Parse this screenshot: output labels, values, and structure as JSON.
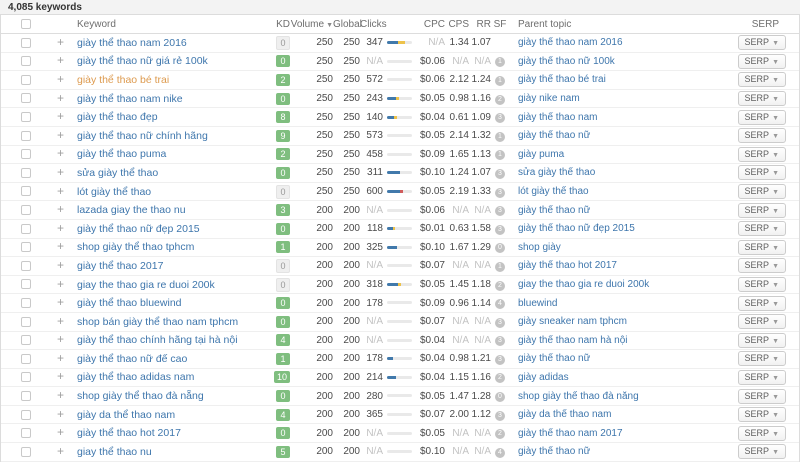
{
  "page": {
    "keywords_count": "4,085 keywords"
  },
  "table": {
    "columns": {
      "keyword": "Keyword",
      "kd": "KD",
      "volume": "Volume",
      "global": "Global",
      "clicks": "Clicks",
      "cpc": "CPC",
      "cps": "CPS",
      "rr": "RR",
      "sf": "SF",
      "parent_topic": "Parent topic",
      "serp": "SERP"
    },
    "serp_button_label": "SERP",
    "colors": {
      "link_blue": "#3e76ac",
      "visited_orange": "#dd9a4e",
      "kd_green": "#7fbe7f",
      "bar_blue": "#4179ab",
      "bar_yellow": "#edc24a",
      "bar_red": "#d05c5c"
    },
    "rows": [
      {
        "keyword": "giày thể thao nam 2016",
        "visited": false,
        "kd": "0",
        "kd_color": "gray",
        "volume": "250",
        "global": "250",
        "clicks": "347",
        "bar": [
          {
            "c": "blue",
            "w": 11
          },
          {
            "c": "yellow",
            "w": 7
          }
        ],
        "cpc": "N/A",
        "cps": "1.34",
        "rr": "1.07",
        "sf": "",
        "parent": "giày thể thao nam 2016"
      },
      {
        "keyword": "giày thể thao nữ giá rẻ 100k",
        "visited": false,
        "kd": "0",
        "kd_color": "green",
        "volume": "250",
        "global": "250",
        "clicks": "N/A",
        "bar": [],
        "cpc": "$0.06",
        "cps": "N/A",
        "rr": "N/A",
        "sf": "1",
        "parent": "giày thể thao nữ 100k"
      },
      {
        "keyword": "giày thể thao bé trai",
        "visited": true,
        "kd": "2",
        "kd_color": "green",
        "volume": "250",
        "global": "250",
        "clicks": "572",
        "bar": [],
        "cpc": "$0.06",
        "cps": "2.12",
        "rr": "1.24",
        "sf": "1",
        "parent": "giày thể thao bé trai"
      },
      {
        "keyword": "giày thể thao nam nike",
        "visited": false,
        "kd": "0",
        "kd_color": "green",
        "volume": "250",
        "global": "250",
        "clicks": "243",
        "bar": [
          {
            "c": "blue",
            "w": 9
          },
          {
            "c": "yellow",
            "w": 3
          }
        ],
        "cpc": "$0.05",
        "cps": "0.98",
        "rr": "1.16",
        "sf": "2",
        "parent": "giày nike nam"
      },
      {
        "keyword": "giày thể thao đẹp",
        "visited": false,
        "kd": "8",
        "kd_color": "green",
        "volume": "250",
        "global": "250",
        "clicks": "140",
        "bar": [
          {
            "c": "blue",
            "w": 7
          },
          {
            "c": "yellow",
            "w": 3
          }
        ],
        "cpc": "$0.04",
        "cps": "0.61",
        "rr": "1.09",
        "sf": "3",
        "parent": "giày thể thao nam"
      },
      {
        "keyword": "giày thể thao nữ chính hãng",
        "visited": false,
        "kd": "9",
        "kd_color": "green",
        "volume": "250",
        "global": "250",
        "clicks": "573",
        "bar": [],
        "cpc": "$0.05",
        "cps": "2.14",
        "rr": "1.32",
        "sf": "1",
        "parent": "giày thể thao nữ"
      },
      {
        "keyword": "giày thể thao puma",
        "visited": false,
        "kd": "2",
        "kd_color": "green",
        "volume": "250",
        "global": "250",
        "clicks": "458",
        "bar": [],
        "cpc": "$0.09",
        "cps": "1.65",
        "rr": "1.13",
        "sf": "1",
        "parent": "giày puma"
      },
      {
        "keyword": "sửa giày thể thao",
        "visited": false,
        "kd": "0",
        "kd_color": "green",
        "volume": "250",
        "global": "250",
        "clicks": "311",
        "bar": [
          {
            "c": "blue",
            "w": 13
          }
        ],
        "cpc": "$0.10",
        "cps": "1.24",
        "rr": "1.07",
        "sf": "3",
        "parent": "sửa giày thể thao"
      },
      {
        "keyword": "lót giày thể thao",
        "visited": false,
        "kd": "0",
        "kd_color": "gray",
        "volume": "250",
        "global": "250",
        "clicks": "600",
        "bar": [
          {
            "c": "blue",
            "w": 13
          },
          {
            "c": "red",
            "w": 3
          }
        ],
        "cpc": "$0.05",
        "cps": "2.19",
        "rr": "1.33",
        "sf": "3",
        "parent": "lót giày thể thao"
      },
      {
        "keyword": "lazada giay the thao nu",
        "visited": false,
        "kd": "3",
        "kd_color": "green",
        "volume": "200",
        "global": "200",
        "clicks": "N/A",
        "bar": [],
        "cpc": "$0.06",
        "cps": "N/A",
        "rr": "N/A",
        "sf": "3",
        "parent": "giày thể thao nữ"
      },
      {
        "keyword": "giày thể thao nữ đẹp 2015",
        "visited": false,
        "kd": "0",
        "kd_color": "green",
        "volume": "200",
        "global": "200",
        "clicks": "118",
        "bar": [
          {
            "c": "blue",
            "w": 6
          },
          {
            "c": "yellow",
            "w": 2
          }
        ],
        "cpc": "$0.01",
        "cps": "0.63",
        "rr": "1.58",
        "sf": "3",
        "parent": "giày thể thao nữ đẹp 2015"
      },
      {
        "keyword": "shop giày thể thao tphcm",
        "visited": false,
        "kd": "1",
        "kd_color": "green",
        "volume": "200",
        "global": "200",
        "clicks": "325",
        "bar": [
          {
            "c": "blue",
            "w": 10
          }
        ],
        "cpc": "$0.10",
        "cps": "1.67",
        "rr": "1.29",
        "sf": "0",
        "parent": "shop giày"
      },
      {
        "keyword": "giày thể thao 2017",
        "visited": false,
        "kd": "0",
        "kd_color": "gray",
        "volume": "200",
        "global": "200",
        "clicks": "N/A",
        "bar": [],
        "cpc": "$0.07",
        "cps": "N/A",
        "rr": "N/A",
        "sf": "1",
        "parent": "giày thể thao hot 2017"
      },
      {
        "keyword": "giay the thao gia re duoi 200k",
        "visited": false,
        "kd": "0",
        "kd_color": "gray",
        "volume": "200",
        "global": "200",
        "clicks": "318",
        "bar": [
          {
            "c": "blue",
            "w": 11
          },
          {
            "c": "yellow",
            "w": 3
          }
        ],
        "cpc": "$0.05",
        "cps": "1.45",
        "rr": "1.18",
        "sf": "2",
        "parent": "giay the thao gia re duoi 200k"
      },
      {
        "keyword": "giày thể thao bluewind",
        "visited": false,
        "kd": "0",
        "kd_color": "green",
        "volume": "200",
        "global": "200",
        "clicks": "178",
        "bar": [],
        "cpc": "$0.09",
        "cps": "0.96",
        "rr": "1.14",
        "sf": "4",
        "parent": "bluewind"
      },
      {
        "keyword": "shop bán giày thể thao nam tphcm",
        "visited": false,
        "kd": "0",
        "kd_color": "green",
        "volume": "200",
        "global": "200",
        "clicks": "N/A",
        "bar": [],
        "cpc": "$0.07",
        "cps": "N/A",
        "rr": "N/A",
        "sf": "3",
        "parent": "giày sneaker nam tphcm"
      },
      {
        "keyword": "giày thể thao chính hãng tại hà nội",
        "visited": false,
        "kd": "4",
        "kd_color": "green",
        "volume": "200",
        "global": "200",
        "clicks": "N/A",
        "bar": [],
        "cpc": "$0.04",
        "cps": "N/A",
        "rr": "N/A",
        "sf": "3",
        "parent": "giày thể thao nam hà nội"
      },
      {
        "keyword": "giày thể thao nữ đế cao",
        "visited": false,
        "kd": "1",
        "kd_color": "green",
        "volume": "200",
        "global": "200",
        "clicks": "178",
        "bar": [
          {
            "c": "blue",
            "w": 6
          }
        ],
        "cpc": "$0.04",
        "cps": "0.98",
        "rr": "1.21",
        "sf": "3",
        "parent": "giày thể thao nữ"
      },
      {
        "keyword": "giày thể thao adidas nam",
        "visited": false,
        "kd": "10",
        "kd_color": "green",
        "volume": "200",
        "global": "200",
        "clicks": "214",
        "bar": [
          {
            "c": "blue",
            "w": 9
          }
        ],
        "cpc": "$0.04",
        "cps": "1.15",
        "rr": "1.16",
        "sf": "2",
        "parent": "giày adidas"
      },
      {
        "keyword": "shop giày thể thao đà nẵng",
        "visited": false,
        "kd": "0",
        "kd_color": "green",
        "volume": "200",
        "global": "200",
        "clicks": "280",
        "bar": [],
        "cpc": "$0.05",
        "cps": "1.47",
        "rr": "1.28",
        "sf": "0",
        "parent": "shop giày thể thao đà nẵng"
      },
      {
        "keyword": "giày da thể thao nam",
        "visited": false,
        "kd": "4",
        "kd_color": "green",
        "volume": "200",
        "global": "200",
        "clicks": "365",
        "bar": [],
        "cpc": "$0.07",
        "cps": "2.00",
        "rr": "1.12",
        "sf": "3",
        "parent": "giày da thể thao nam"
      },
      {
        "keyword": "giày thể thao hot 2017",
        "visited": false,
        "kd": "0",
        "kd_color": "green",
        "volume": "200",
        "global": "200",
        "clicks": "N/A",
        "bar": [],
        "cpc": "$0.05",
        "cps": "N/A",
        "rr": "N/A",
        "sf": "2",
        "parent": "giày thể thao nam 2017"
      },
      {
        "keyword": "giay thể thao nu",
        "visited": false,
        "kd": "5",
        "kd_color": "green",
        "volume": "200",
        "global": "200",
        "clicks": "N/A",
        "bar": [],
        "cpc": "$0.10",
        "cps": "N/A",
        "rr": "N/A",
        "sf": "4",
        "parent": "giày thể thao nữ"
      }
    ]
  }
}
